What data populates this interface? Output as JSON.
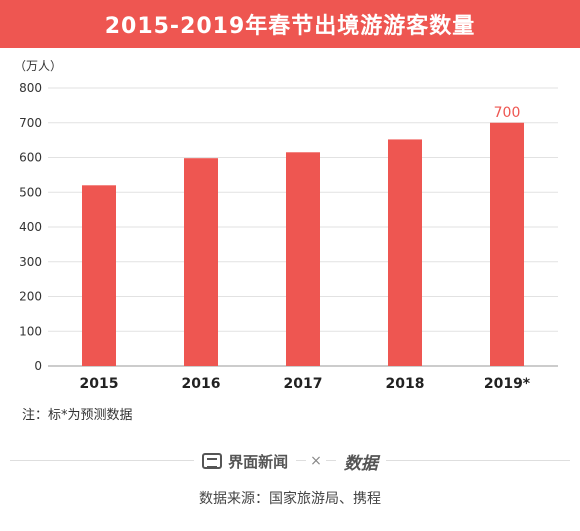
{
  "header": {
    "title": "2015-2019年春节出境游游客数量"
  },
  "chart_data": {
    "type": "bar",
    "unit_label": "（万人）",
    "categories": [
      "2015",
      "2016",
      "2017",
      "2018",
      "2019*"
    ],
    "values": [
      520,
      598,
      615,
      652,
      700
    ],
    "data_labels": [
      "",
      "",
      "",
      "",
      "700"
    ],
    "yticks": [
      "0",
      "100",
      "200",
      "300",
      "400",
      "500",
      "600",
      "700",
      "800"
    ],
    "ylim": [
      0,
      800
    ],
    "grid": true,
    "bar_color": "#ee5651",
    "label_color": "#ee5651"
  },
  "note": "注：标*为预测数据",
  "footer": {
    "brand_text": "界面新闻",
    "times": "×",
    "partner_logo": "数据",
    "source": "数据来源：国家旅游局、携程"
  }
}
